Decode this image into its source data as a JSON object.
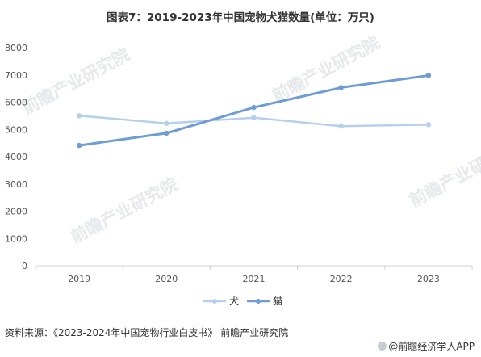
{
  "title": "图表7：2019-2023年中国宠物犬猫数量(单位：万只)",
  "source": "资料来源：《2023-2024年中国宠物行业白皮书》 前瞻产业研究院",
  "brand": "@前瞻经济学人APP",
  "watermark": "前瞻产业研究院",
  "chart_data": {
    "type": "line",
    "categories": [
      "2019",
      "2020",
      "2021",
      "2022",
      "2023"
    ],
    "series": [
      {
        "name": "犬",
        "values": [
          5503,
          5222,
          5429,
          5119,
          5175
        ],
        "color": "#b4d0ea"
      },
      {
        "name": "猫",
        "values": [
          4412,
          4862,
          5806,
          6536,
          6980
        ],
        "color": "#6e9dd3"
      }
    ],
    "ylim": [
      0,
      8000
    ],
    "yticks": [
      0,
      1000,
      2000,
      3000,
      4000,
      5000,
      6000,
      7000,
      8000
    ],
    "grid": false,
    "legend": "bottom-center"
  }
}
